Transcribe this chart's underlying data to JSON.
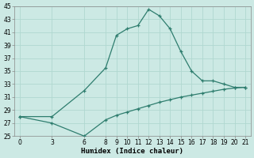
{
  "xlabel": "Humidex (Indice chaleur)",
  "background_color": "#cce9e4",
  "line_color": "#2e7d6e",
  "grid_color": "#b0d8d0",
  "x_main": [
    0,
    3,
    6,
    8,
    9,
    10,
    11,
    12,
    13,
    14,
    15,
    16,
    17,
    18,
    19,
    20,
    21
  ],
  "y_main": [
    28,
    28,
    32,
    35.5,
    40.5,
    41.5,
    42,
    44.5,
    43.5,
    41.5,
    38,
    35,
    33.5,
    33.5,
    33,
    32.5,
    32.5
  ],
  "x_secondary": [
    0,
    3,
    6,
    8,
    9,
    10,
    11,
    12,
    13,
    14,
    15,
    16,
    17,
    18,
    19,
    20,
    21
  ],
  "y_secondary": [
    28,
    27,
    25,
    27.5,
    28.2,
    28.7,
    29.2,
    29.7,
    30.2,
    30.6,
    31.0,
    31.3,
    31.6,
    31.9,
    32.2,
    32.4,
    32.5
  ],
  "xlim": [
    -0.5,
    21.5
  ],
  "ylim": [
    25,
    45
  ],
  "xticks": [
    0,
    3,
    6,
    8,
    9,
    10,
    11,
    12,
    13,
    14,
    15,
    16,
    17,
    18,
    19,
    20,
    21
  ],
  "yticks": [
    25,
    27,
    29,
    31,
    33,
    35,
    37,
    39,
    41,
    43,
    45
  ],
  "tick_fontsize": 5.5,
  "xlabel_fontsize": 6.5
}
